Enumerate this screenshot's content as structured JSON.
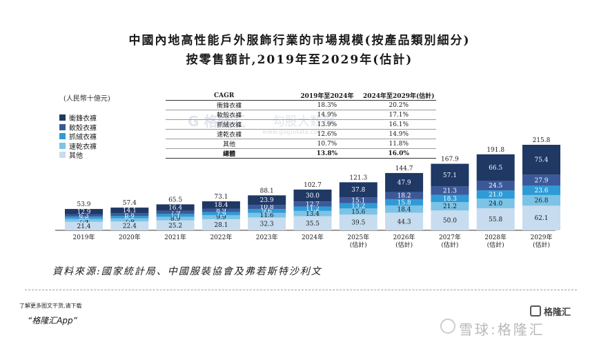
{
  "title_line1": "中國內地高性能戶外服飾行業的市場規模(按產品類別細分)",
  "title_line2": "按零售額計,2019年至2029年(估計)",
  "unit_label": "(人民幣十億元)",
  "colors": {
    "衝鋒衣褲": "#1f3864",
    "軟殼衣褲": "#3b5998",
    "抓絨衣褲": "#2f9bd6",
    "速乾衣褲": "#7cc3e6",
    "其他": "#c7dcee"
  },
  "cagr_table": {
    "headers": [
      "CAGR",
      "2019年至2024年",
      "2024年至2029年(估計)"
    ],
    "rows": [
      {
        "name": "衝鋒衣褲",
        "c1": "18.3%",
        "c2": "20.2%"
      },
      {
        "name": "軟殼衣褲",
        "c1": "14.9%",
        "c2": "17.1%"
      },
      {
        "name": "抓絨衣褲",
        "c1": "13.9%",
        "c2": "16.1%"
      },
      {
        "name": "速乾衣褲",
        "c1": "12.6%",
        "c2": "14.9%"
      },
      {
        "name": "其他",
        "c1": "10.7%",
        "c2": "11.8%"
      },
      {
        "name": "總體",
        "c1": "13.8%",
        "c2": "16.0%"
      }
    ]
  },
  "chart_data": {
    "type": "bar",
    "stacked": true,
    "categories": [
      "2019年",
      "2020年",
      "2021年",
      "2022年",
      "2023年",
      "2024年",
      "2025年\n(估計)",
      "2026年\n(估計)",
      "2027年\n(估計)",
      "2028年\n(估計)",
      "2029年\n(估計)"
    ],
    "series": [
      {
        "name": "其他",
        "values": [
          21.4,
          22.4,
          25.2,
          28.1,
          32.3,
          35.5,
          39.5,
          44.3,
          50.0,
          55.8,
          62.1
        ]
      },
      {
        "name": "速乾衣褲",
        "values": [
          7.4,
          7.8,
          8.9,
          9.9,
          11.6,
          13.4,
          15.6,
          18.4,
          21.2,
          24.0,
          26.8
        ]
      },
      {
        "name": "抓絨衣褲",
        "values": [
          5.8,
          6.2,
          7.1,
          7.9,
          9.6,
          11.2,
          13.2,
          15.8,
          18.3,
          21.0,
          23.6
        ]
      },
      {
        "name": "軟殼衣褲",
        "values": [
          6.3,
          6.8,
          7.9,
          8.9,
          10.8,
          12.7,
          15.1,
          18.2,
          21.3,
          24.5,
          27.9
        ]
      },
      {
        "name": "衝鋒衣褲",
        "values": [
          12.9,
          14.1,
          16.4,
          18.4,
          23.9,
          30.0,
          37.8,
          47.9,
          57.1,
          66.5,
          75.4
        ]
      }
    ],
    "totals": [
      53.9,
      57.4,
      65.5,
      73.1,
      88.1,
      102.7,
      121.3,
      144.7,
      167.9,
      191.8,
      215.8
    ],
    "legend_order": [
      "衝鋒衣褲",
      "軟殼衣褲",
      "抓絨衣褲",
      "速乾衣褲",
      "其他"
    ],
    "ylabel": "人民幣十億元",
    "ylim": [
      0,
      215.8
    ],
    "legend_position": "left"
  },
  "source": "資料來源:國家統計局、中國服裝協會及弗若斯特沙利文",
  "download_note": "了解更多图文干货,请下载",
  "download_app": "“格隆汇App”",
  "brand_name": "格隆汇",
  "watermark_text": "雪球:格隆汇",
  "bg_watermark": {
    "brand": "G 格隆汇",
    "site": "勾股大数据",
    "url": "www.gogudata.com"
  }
}
